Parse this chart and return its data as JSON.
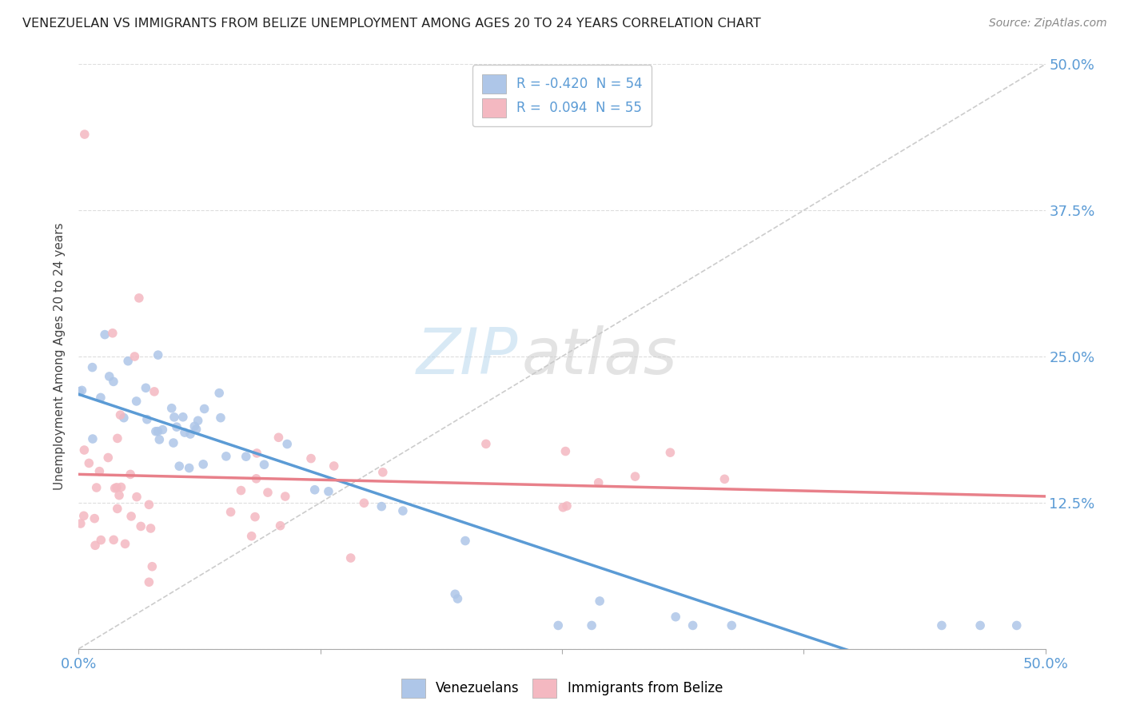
{
  "title": "VENEZUELAN VS IMMIGRANTS FROM BELIZE UNEMPLOYMENT AMONG AGES 20 TO 24 YEARS CORRELATION CHART",
  "source": "Source: ZipAtlas.com",
  "ylabel": "Unemployment Among Ages 20 to 24 years",
  "xlim": [
    0,
    0.5
  ],
  "ylim": [
    0,
    0.5
  ],
  "xtick_labels": [
    "0.0%",
    "",
    "",
    "",
    "50.0%"
  ],
  "ytick_labels_right": [
    "",
    "12.5%",
    "25.0%",
    "37.5%",
    "50.0%"
  ],
  "watermark_zip": "ZIP",
  "watermark_atlas": "atlas",
  "venezuelan_color": "#aec6e8",
  "belize_color": "#f4b8c1",
  "trend_venezuelan_color": "#5b9bd5",
  "trend_belize_color": "#e8808a",
  "R_venezuelan": -0.42,
  "N_venezuelan": 54,
  "R_belize": 0.094,
  "N_belize": 55,
  "diagonal_color": "#cccccc",
  "grid_color": "#dddddd",
  "title_color": "#222222",
  "source_color": "#888888",
  "axis_label_color": "#5b9bd5",
  "legend_text_color": "#5b9bd5"
}
